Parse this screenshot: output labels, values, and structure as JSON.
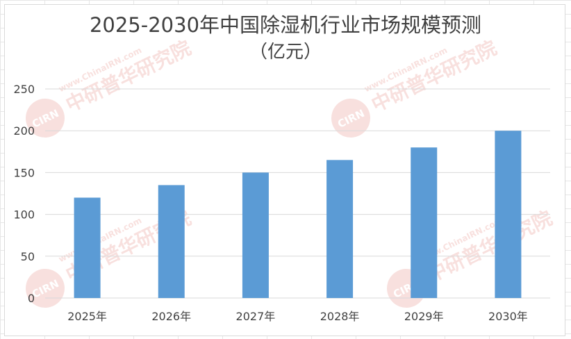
{
  "chart_data": {
    "type": "bar",
    "title": "2025-2030年中国除湿机行业市场规模预测",
    "subtitle": "（亿元）",
    "categories": [
      "2025年",
      "2026年",
      "2027年",
      "2028年",
      "2029年",
      "2030年"
    ],
    "values": [
      120,
      135,
      150,
      165,
      180,
      200
    ],
    "ylim": [
      0,
      250
    ],
    "yticks": [
      0,
      50,
      100,
      150,
      200,
      250
    ],
    "xlabel": "",
    "ylabel": "",
    "grid": "horizontal",
    "legend": "none",
    "bar_color": "#5b9bd5",
    "grid_color": "#d9d9d9"
  },
  "watermark": {
    "logo": "CIRN",
    "name": "中研普华研究院",
    "url": "www.ChinaIRN.com",
    "color": "#e8948a"
  }
}
